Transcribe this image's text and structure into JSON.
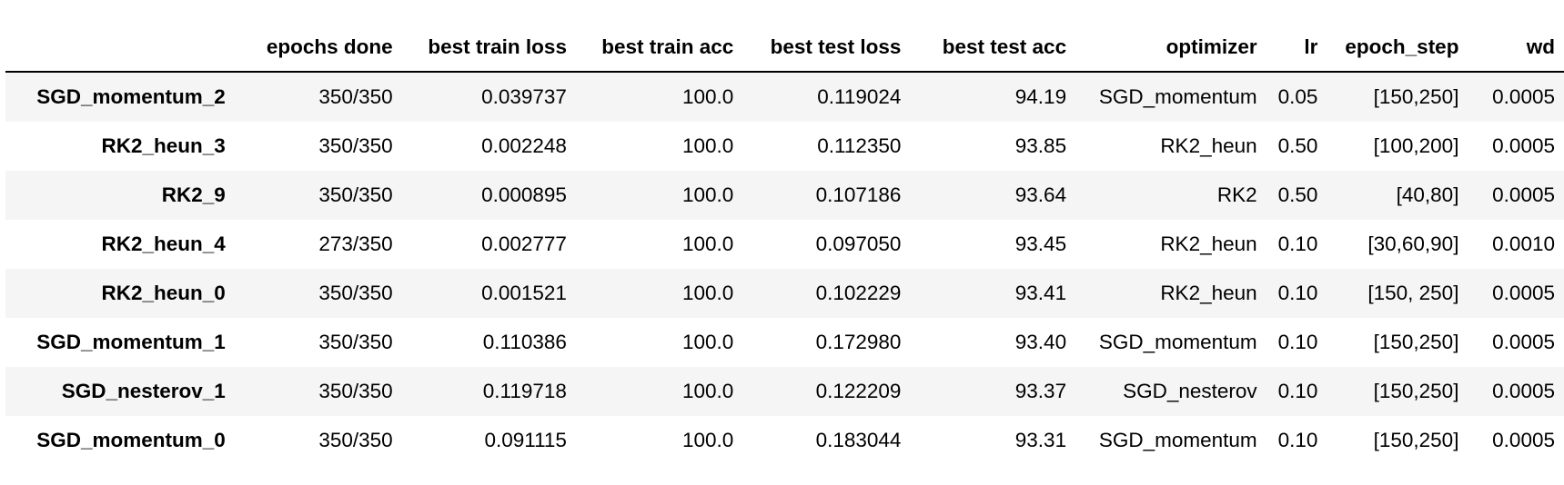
{
  "table": {
    "columns": [
      "",
      "epochs done",
      "best train loss",
      "best train acc",
      "best test loss",
      "best test acc",
      "optimizer",
      "lr",
      "epoch_step",
      "wd"
    ],
    "rows": [
      {
        "name": "SGD_momentum_2",
        "cells": [
          "350/350",
          "0.039737",
          "100.0",
          "0.119024",
          "94.19",
          "SGD_momentum",
          "0.05",
          "[150,250]",
          "0.0005"
        ]
      },
      {
        "name": "RK2_heun_3",
        "cells": [
          "350/350",
          "0.002248",
          "100.0",
          "0.112350",
          "93.85",
          "RK2_heun",
          "0.50",
          "[100,200]",
          "0.0005"
        ]
      },
      {
        "name": "RK2_9",
        "cells": [
          "350/350",
          "0.000895",
          "100.0",
          "0.107186",
          "93.64",
          "RK2",
          "0.50",
          "[40,80]",
          "0.0005"
        ]
      },
      {
        "name": "RK2_heun_4",
        "cells": [
          "273/350",
          "0.002777",
          "100.0",
          "0.097050",
          "93.45",
          "RK2_heun",
          "0.10",
          "[30,60,90]",
          "0.0010"
        ]
      },
      {
        "name": "RK2_heun_0",
        "cells": [
          "350/350",
          "0.001521",
          "100.0",
          "0.102229",
          "93.41",
          "RK2_heun",
          "0.10",
          "[150, 250]",
          "0.0005"
        ]
      },
      {
        "name": "SGD_momentum_1",
        "cells": [
          "350/350",
          "0.110386",
          "100.0",
          "0.172980",
          "93.40",
          "SGD_momentum",
          "0.10",
          "[150,250]",
          "0.0005"
        ]
      },
      {
        "name": "SGD_nesterov_1",
        "cells": [
          "350/350",
          "0.119718",
          "100.0",
          "0.122209",
          "93.37",
          "SGD_nesterov",
          "0.10",
          "[150,250]",
          "0.0005"
        ]
      },
      {
        "name": "SGD_momentum_0",
        "cells": [
          "350/350",
          "0.091115",
          "100.0",
          "0.183044",
          "93.31",
          "SGD_momentum",
          "0.10",
          "[150,250]",
          "0.0005"
        ]
      }
    ]
  }
}
